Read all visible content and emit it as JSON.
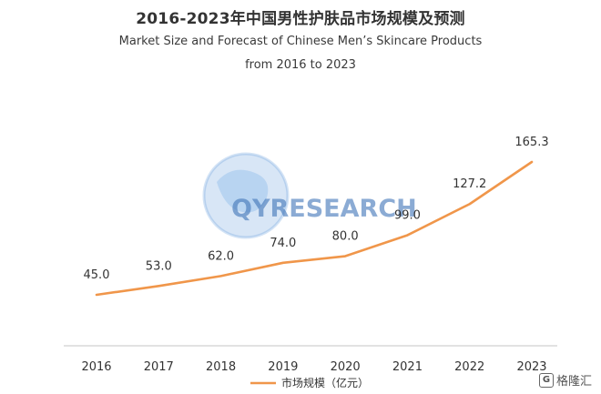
{
  "header": {
    "title": "2016-2023年中国男性护肤品市场规模及预测",
    "subtitle_line1": "Market Size and Forecast of Chinese Men’s Skincare Products",
    "subtitle_line2": "from 2016 to 2023"
  },
  "chart_data": {
    "type": "line",
    "title": "2016-2023年中国男性护肤品市场规模及预测",
    "subtitle": "Market Size and Forecast of Chinese Men’s Skincare Products from 2016 to 2023",
    "categories": [
      "2016",
      "2017",
      "2018",
      "2019",
      "2020",
      "2021",
      "2022",
      "2023"
    ],
    "series": [
      {
        "name": "市场规模（亿元）",
        "values": [
          45.0,
          53.0,
          62.0,
          74.0,
          80.0,
          99.0,
          127.2,
          165.3
        ],
        "labels": [
          "45.0",
          "53.0",
          "62.0",
          "74.0",
          "80.0",
          "99.0",
          "127.2",
          "165.3"
        ],
        "color": "#f0964a"
      }
    ],
    "xlabel": "",
    "ylabel": "",
    "grid": false,
    "legend": "bottom-center"
  },
  "watermark": {
    "text": "QYRESEARCH",
    "color": "#3f74b8"
  },
  "corner_logo": {
    "icon": "g-logo-icon",
    "text": "格隆汇"
  }
}
